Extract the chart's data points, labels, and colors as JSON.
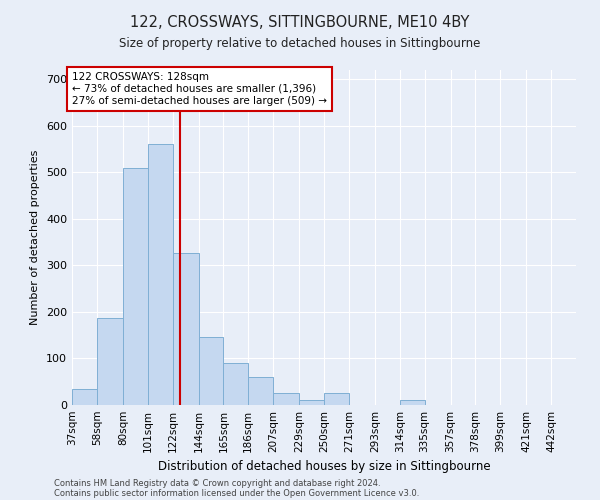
{
  "title1": "122, CROSSWAYS, SITTINGBOURNE, ME10 4BY",
  "title2": "Size of property relative to detached houses in Sittingbourne",
  "xlabel": "Distribution of detached houses by size in Sittingbourne",
  "ylabel": "Number of detached properties",
  "footer1": "Contains HM Land Registry data © Crown copyright and database right 2024.",
  "footer2": "Contains public sector information licensed under the Open Government Licence v3.0.",
  "property_size": 128,
  "property_label": "122 CROSSWAYS: 128sqm",
  "annotation_line1": "← 73% of detached houses are smaller (1,396)",
  "annotation_line2": "27% of semi-detached houses are larger (509) →",
  "bar_color": "#c5d8f0",
  "bar_edge_color": "#7fafd4",
  "redline_color": "#cc0000",
  "annot_box_color": "#ffffff",
  "annot_box_edge_color": "#cc0000",
  "background_color": "#e8eef8",
  "bins": [
    37,
    58,
    80,
    101,
    122,
    144,
    165,
    186,
    207,
    229,
    250,
    271,
    293,
    314,
    335,
    357,
    378,
    399,
    421,
    442,
    463
  ],
  "counts": [
    35,
    188,
    510,
    562,
    327,
    147,
    90,
    60,
    25,
    10,
    25,
    0,
    0,
    10,
    0,
    0,
    0,
    0,
    0,
    0
  ],
  "ylim": [
    0,
    720
  ],
  "yticks": [
    0,
    100,
    200,
    300,
    400,
    500,
    600,
    700
  ]
}
